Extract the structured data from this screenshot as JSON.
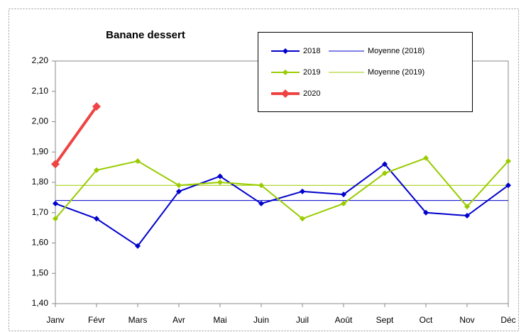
{
  "chart_data": {
    "type": "line",
    "title": "Banane dessert",
    "categories": [
      "Janv",
      "Févr",
      "Mars",
      "Avr",
      "Mai",
      "Juin",
      "Juil",
      "Août",
      "Sept",
      "Oct",
      "Nov",
      "Déc"
    ],
    "series": [
      {
        "name": "2018",
        "color": "#0000cc",
        "values": [
          1.73,
          1.68,
          1.59,
          1.77,
          1.82,
          1.73,
          1.77,
          1.76,
          1.86,
          1.7,
          1.69,
          1.79
        ]
      },
      {
        "name": "2019",
        "color": "#99cc00",
        "values": [
          1.68,
          1.84,
          1.87,
          1.79,
          1.8,
          1.79,
          1.68,
          1.73,
          1.83,
          1.88,
          1.72,
          1.87
        ]
      },
      {
        "name": "2020",
        "color": "#ee4444",
        "values": [
          1.86,
          2.05,
          null,
          null,
          null,
          null,
          null,
          null,
          null,
          null,
          null,
          null
        ]
      }
    ],
    "averages": [
      {
        "name": "Moyenne (2018)",
        "color": "#0000cc",
        "value": 1.74
      },
      {
        "name": "Moyenne (2019)",
        "color": "#99cc00",
        "value": 1.79
      }
    ],
    "ylim": [
      1.4,
      2.2
    ],
    "yticks": [
      {
        "value": 1.4,
        "label": "1,40"
      },
      {
        "value": 1.5,
        "label": "1,50"
      },
      {
        "value": 1.6,
        "label": "1,60"
      },
      {
        "value": 1.7,
        "label": "1,70"
      },
      {
        "value": 1.8,
        "label": "1,80"
      },
      {
        "value": 1.9,
        "label": "1,90"
      },
      {
        "value": 2.0,
        "label": "2,00"
      },
      {
        "value": 2.1,
        "label": "2,10"
      },
      {
        "value": 2.2,
        "label": "2,20"
      }
    ]
  }
}
